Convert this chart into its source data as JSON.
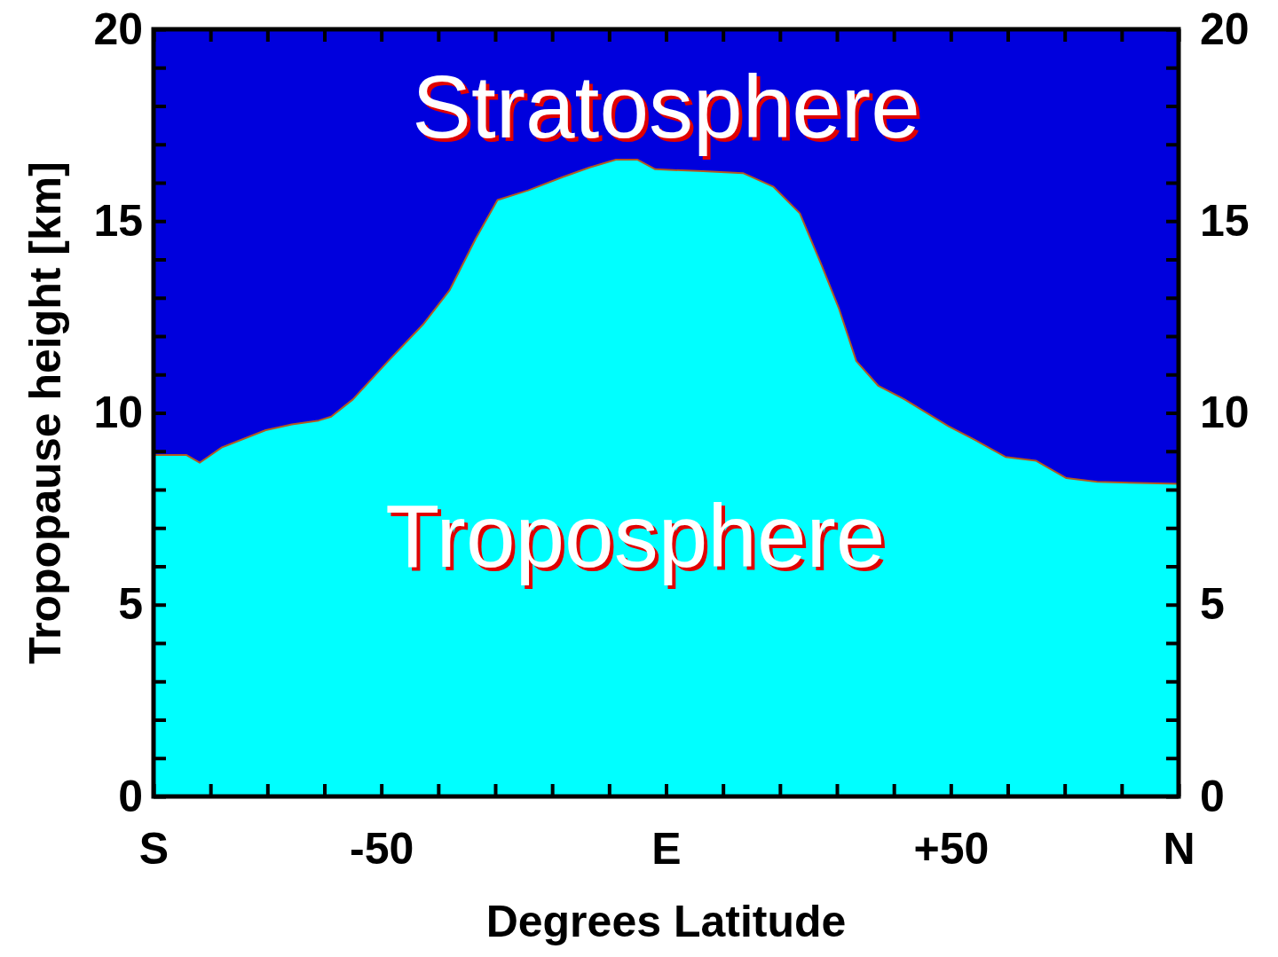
{
  "chart_data": {
    "type": "area",
    "stacked": true,
    "xlabel": "Degrees Latitude",
    "ylabel": "Tropopause height [km]",
    "x": [
      -90,
      -84.2,
      -81.9,
      -78,
      -70.3,
      -65.7,
      -61,
      -58.8,
      -55,
      -48.8,
      -42.7,
      -38,
      -33.4,
      -29.6,
      -24.2,
      -18.1,
      -13.4,
      -8.8,
      -5,
      -1.9,
      6.5,
      13.5,
      18.8,
      23.5,
      27.3,
      30.4,
      33.4,
      37.3,
      41.9,
      49.6,
      54.2,
      59.6,
      65,
      70.3,
      75.7,
      90
    ],
    "series": [
      {
        "color": "#00ffff",
        "values": [
          8.9,
          8.9,
          8.7,
          9.1,
          9.55,
          9.7,
          9.8,
          9.9,
          10.35,
          11.35,
          12.3,
          13.2,
          14.55,
          15.55,
          15.8,
          16.15,
          16.4,
          16.6,
          16.6,
          16.35,
          16.3,
          16.25,
          15.9,
          15.2,
          13.85,
          12.7,
          11.35,
          10.7,
          10.35,
          9.65,
          9.3,
          8.85,
          8.75,
          8.3,
          8.2,
          8.15
        ]
      },
      {
        "color": "#0000dd",
        "values": [
          11.1,
          11.1,
          11.3,
          10.9,
          10.45,
          10.3,
          10.2,
          10.1,
          9.65,
          8.65,
          7.7,
          6.8,
          5.45,
          4.45,
          4.2,
          3.85,
          3.6,
          3.4,
          3.4,
          3.65,
          3.7,
          3.75,
          4.1,
          4.8,
          6.15,
          7.3,
          8.65,
          9.3,
          9.65,
          10.35,
          10.7,
          11.15,
          11.25,
          11.7,
          11.8,
          11.85
        ]
      }
    ],
    "annotations": [
      "Stratosphere",
      "Troposphere"
    ],
    "xlim": [
      -90,
      90
    ],
    "ylim": [
      0,
      20
    ],
    "y2lim": [
      0,
      20
    ],
    "xticks": [
      {
        "value": -90,
        "label": "S"
      },
      {
        "value": -80,
        "label": null
      },
      {
        "value": -70,
        "label": null
      },
      {
        "value": -60,
        "label": null
      },
      {
        "value": -50,
        "label": "-50"
      },
      {
        "value": -40,
        "label": null
      },
      {
        "value": -30,
        "label": null
      },
      {
        "value": -20,
        "label": null
      },
      {
        "value": -10,
        "label": null
      },
      {
        "value": 0,
        "label": "E"
      },
      {
        "value": 10,
        "label": null
      },
      {
        "value": 20,
        "label": null
      },
      {
        "value": 30,
        "label": null
      },
      {
        "value": 40,
        "label": null
      },
      {
        "value": 50,
        "label": "+50"
      },
      {
        "value": 60,
        "label": null
      },
      {
        "value": 70,
        "label": null
      },
      {
        "value": 80,
        "label": null
      },
      {
        "value": 90,
        "label": "N"
      }
    ],
    "yticks": [
      0,
      {
        "value": 1,
        "label": null
      },
      {
        "value": 2,
        "label": null
      },
      {
        "value": 3,
        "label": null
      },
      {
        "value": 4,
        "label": null
      },
      5,
      {
        "value": 6,
        "label": null
      },
      {
        "value": 7,
        "label": null
      },
      {
        "value": 8,
        "label": null
      },
      {
        "value": 9,
        "label": null
      },
      10,
      {
        "value": 11,
        "label": null
      },
      {
        "value": 12,
        "label": null
      },
      {
        "value": 13,
        "label": null
      },
      {
        "value": 14,
        "label": null
      },
      15,
      {
        "value": 16,
        "label": null
      },
      {
        "value": 17,
        "label": null
      },
      {
        "value": 18,
        "label": null
      },
      {
        "value": 19,
        "label": null
      },
      20
    ],
    "y2ticks": [
      0,
      {
        "value": 1,
        "label": null
      },
      {
        "value": 2,
        "label": null
      },
      {
        "value": 3,
        "label": null
      },
      {
        "value": 4,
        "label": null
      },
      5,
      {
        "value": 6,
        "label": null
      },
      {
        "value": 7,
        "label": null
      },
      {
        "value": 8,
        "label": null
      },
      {
        "value": 9,
        "label": null
      },
      10,
      {
        "value": 11,
        "label": null
      },
      {
        "value": 12,
        "label": null
      },
      {
        "value": 13,
        "label": null
      },
      {
        "value": 14,
        "label": null
      },
      15,
      {
        "value": 16,
        "label": null
      },
      {
        "value": 17,
        "label": null
      },
      {
        "value": 18,
        "label": null
      },
      {
        "value": 19,
        "label": null
      },
      20
    ],
    "grid": false
  }
}
